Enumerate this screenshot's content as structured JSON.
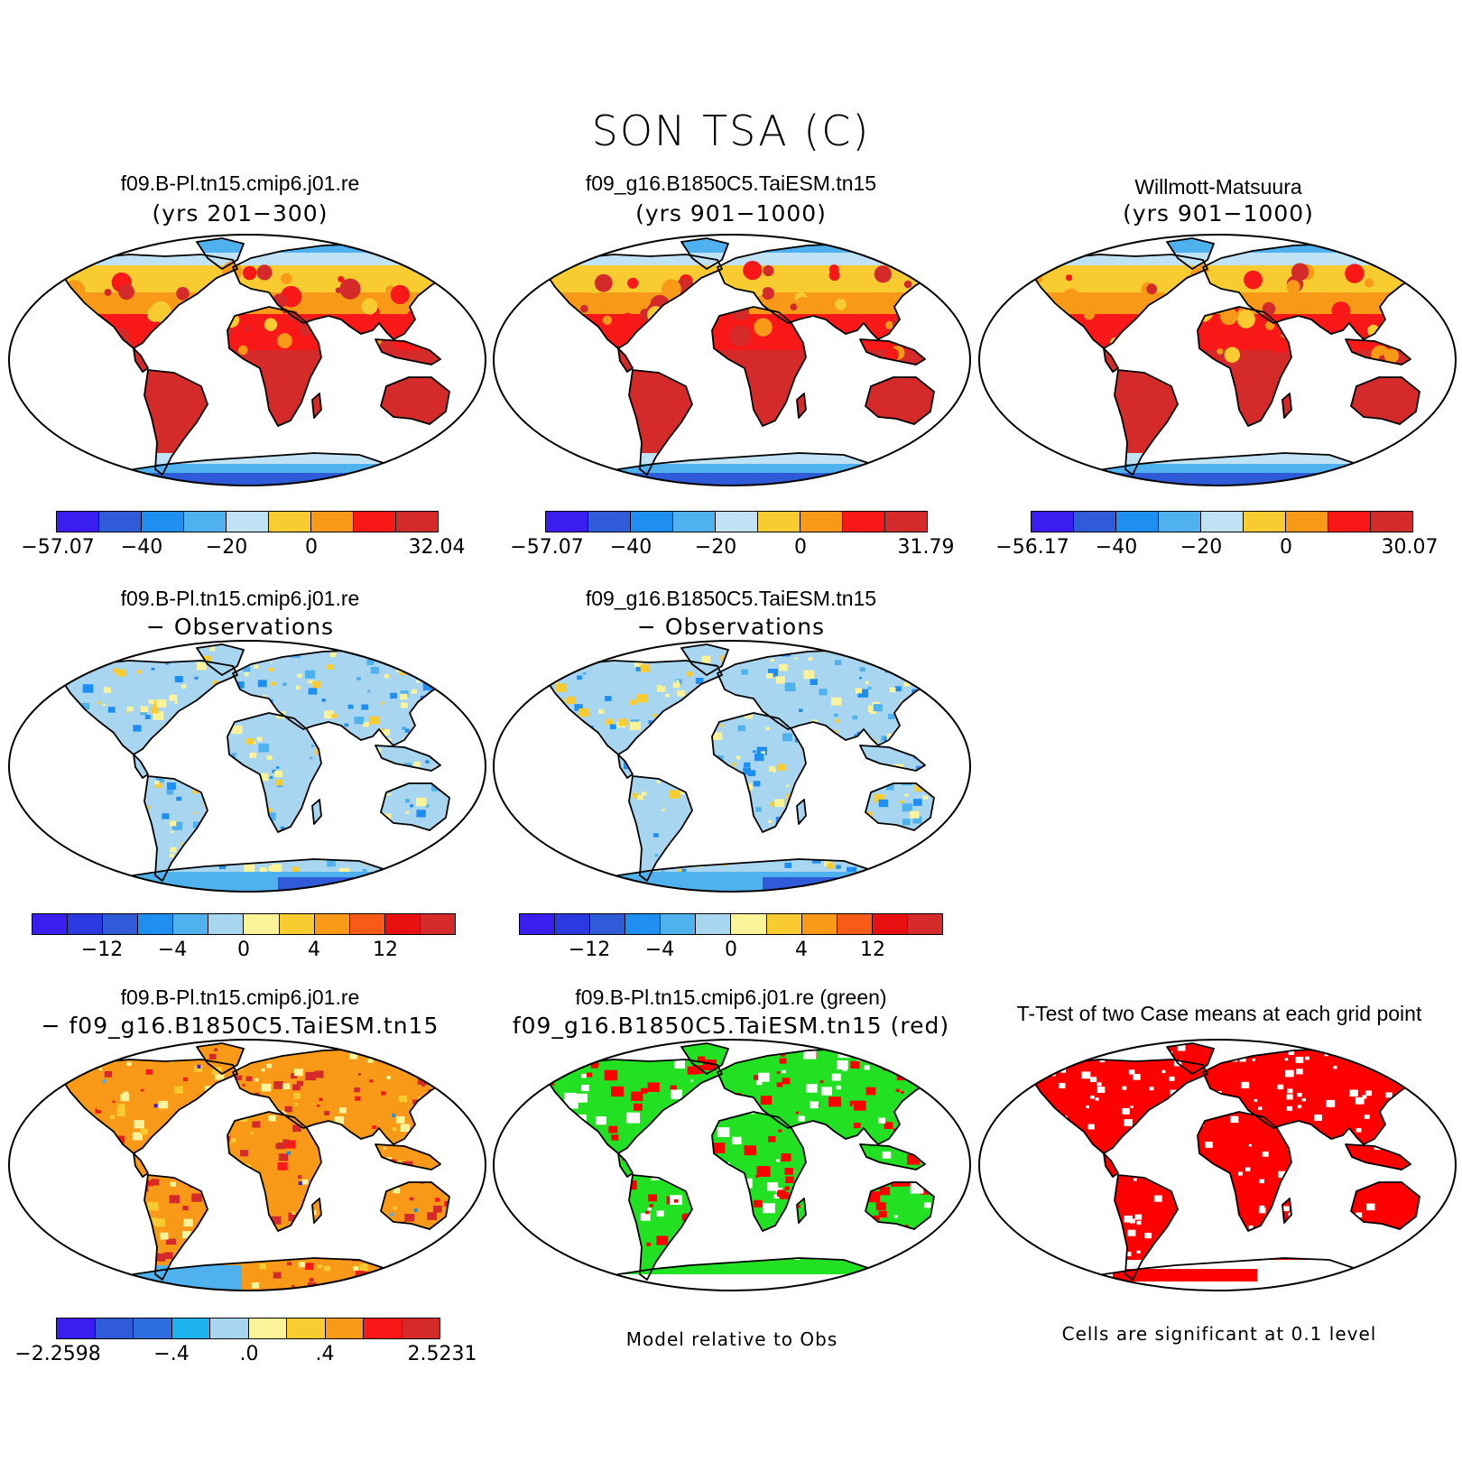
{
  "title": "SON TSA (C)",
  "panels": [
    {
      "id": "p1",
      "line1": "f09.B-Pl.tn15.cmip6.j01.re",
      "line2": "(yrs 201−300)",
      "style": "temp"
    },
    {
      "id": "p2",
      "line1": "f09_g16.B1850C5.TaiESM.tn15",
      "line2": "(yrs 901−1000)",
      "style": "temp"
    },
    {
      "id": "p3",
      "line1": "Willmott-Matsuura",
      "line2": "(yrs 901−1000)",
      "style": "temp"
    },
    {
      "id": "p4",
      "line1": "f09.B-Pl.tn15.cmip6.j01.re",
      "line2": "− Observations",
      "style": "bias"
    },
    {
      "id": "p5",
      "line1": "f09_g16.B1850C5.TaiESM.tn15",
      "line2": "− Observations",
      "style": "bias"
    },
    {
      "id": "p6",
      "line1": "f09.B-Pl.tn15.cmip6.j01.re",
      "line2": "− f09_g16.B1850C5.TaiESM.tn15",
      "style": "diff"
    },
    {
      "id": "p7",
      "line1": "f09.B-Pl.tn15.cmip6.j01.re (green)",
      "line2": "f09_g16.B1850C5.TaiESM.tn15 (red)",
      "style": "greenred"
    },
    {
      "id": "p8",
      "line1": "T-Test of two Case means at each grid point",
      "line2": "",
      "style": "ttest"
    }
  ],
  "colorbars": {
    "cb1": {
      "labels": [
        "−57.07",
        "−40",
        "−20",
        "0",
        "32.04"
      ]
    },
    "cb2": {
      "labels": [
        "−57.07",
        "−40",
        "−20",
        "0",
        "31.79"
      ]
    },
    "cb3": {
      "labels": [
        "−56.17",
        "−40",
        "−20",
        "0",
        "30.07"
      ]
    },
    "cb4": {
      "labels": [
        "−12",
        "−4",
        "0",
        "4",
        "12"
      ]
    },
    "cb5": {
      "labels": [
        "−12",
        "−4",
        "0",
        "4",
        "12"
      ]
    },
    "cb6": {
      "labels": [
        "−2.2598",
        "−.4",
        ".0",
        ".4",
        "2.5231"
      ]
    }
  },
  "notes": {
    "green_red": "Model relative to Obs",
    "ttest": "Cells are significant at 0.1 level"
  },
  "colors": {
    "temp": [
      "#3a1ef0",
      "#2f5ad8",
      "#1e8ef0",
      "#4fb2ee",
      "#bfe2f5",
      "#f8cc30",
      "#f89a18",
      "#f81818",
      "#d42a2a"
    ],
    "anom": [
      "#3a1ef0",
      "#2a3ae0",
      "#2f5ad8",
      "#1e8ef0",
      "#4fb2ee",
      "#a8d6f0",
      "#fbf39a",
      "#f8cc30",
      "#f89a18",
      "#f85a18",
      "#e81010",
      "#d42a2a"
    ],
    "diff": [
      "#3a1ef0",
      "#2f5ad8",
      "#2f6ee0",
      "#1eb2f0",
      "#a8d6f0",
      "#fbf39a",
      "#f8cc30",
      "#f89a18",
      "#f81818",
      "#d42a2a"
    ]
  }
}
